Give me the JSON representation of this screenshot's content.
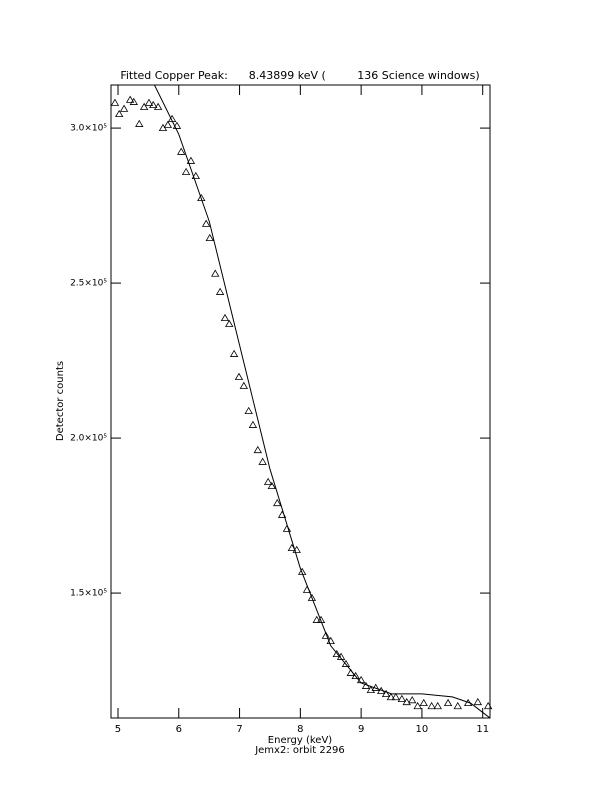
{
  "chart_data": {
    "type": "scatter_fit",
    "title": "Fitted Copper Peak:      8.43899 keV (         136 Science windows)",
    "x_label": "Energy (keV)",
    "subtitle": "Jemx2: orbit 2296",
    "y_label": "Detector counts",
    "xlim": [
      4.885,
      11.12
    ],
    "ylim": [
      109700,
      313900
    ],
    "xticks": [
      5,
      6,
      7,
      8,
      9,
      10,
      11
    ],
    "yticks": [
      {
        "value": 150000,
        "label": "1.5×10⁵"
      },
      {
        "value": 200000,
        "label": "2.0×10⁵"
      },
      {
        "value": 250000,
        "label": "2.5×10⁵"
      },
      {
        "value": 300000,
        "label": "3.0×10⁵"
      }
    ],
    "series": [
      {
        "name": "data",
        "color": "#000000",
        "marker": "triangle",
        "x": [
          4.95,
          5.02,
          5.1,
          5.2,
          5.26,
          5.35,
          5.43,
          5.51,
          5.58,
          5.66,
          5.74,
          5.82,
          5.89,
          5.97,
          6.04,
          6.12,
          6.2,
          6.28,
          6.37,
          6.45,
          6.51,
          6.6,
          6.68,
          6.76,
          6.83,
          6.91,
          6.99,
          7.07,
          7.15,
          7.22,
          7.3,
          7.38,
          7.47,
          7.53,
          7.62,
          7.7,
          7.78,
          7.86,
          7.94,
          8.03,
          8.11,
          8.19,
          8.27,
          8.34,
          8.42,
          8.5,
          8.6,
          8.67,
          8.75,
          8.83,
          8.91,
          9.0,
          9.08,
          9.16,
          9.24,
          9.33,
          9.41,
          9.49,
          9.57,
          9.67,
          9.75,
          9.84,
          9.93,
          10.03,
          10.16,
          10.26,
          10.43,
          10.59,
          10.76,
          10.92,
          11.09
        ],
        "values": [
          308100,
          304500,
          306200,
          309100,
          308400,
          301300,
          306800,
          308100,
          307400,
          306800,
          300000,
          301000,
          302900,
          300700,
          292300,
          285800,
          289400,
          284500,
          277400,
          269100,
          264500,
          253000,
          247100,
          238700,
          236800,
          227100,
          219700,
          216800,
          208700,
          204200,
          196100,
          192300,
          185800,
          184500,
          179000,
          175200,
          170700,
          164500,
          163900,
          156800,
          151000,
          148400,
          141300,
          141300,
          136200,
          134500,
          130300,
          129400,
          127100,
          124200,
          123200,
          121900,
          120000,
          118700,
          119400,
          118400,
          117400,
          116400,
          116400,
          115800,
          114800,
          115400,
          113500,
          114500,
          113500,
          113500,
          114500,
          113500,
          114500,
          114800,
          113500
        ]
      },
      {
        "name": "fit",
        "color": "#000000",
        "marker": "line",
        "x": [
          5.6,
          6.0,
          6.5,
          7.0,
          7.5,
          8.0,
          8.5,
          9.0,
          9.5,
          10.0,
          10.5,
          10.8,
          11.0,
          11.12
        ],
        "values": [
          313900,
          298000,
          270000,
          230000,
          190000,
          158000,
          133000,
          121000,
          117500,
          117500,
          116500,
          114500,
          111500,
          109700
        ]
      }
    ]
  }
}
